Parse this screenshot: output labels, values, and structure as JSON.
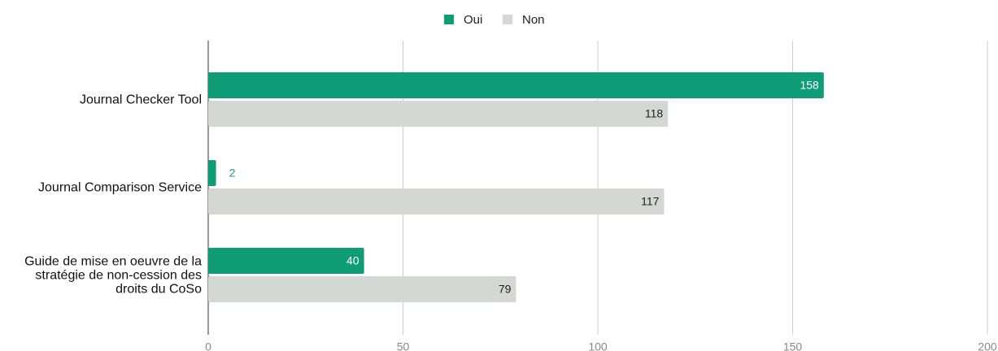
{
  "chart_data": {
    "type": "bar",
    "orientation": "horizontal",
    "categories": [
      "Journal Checker Tool",
      "Journal Comparison Service",
      "Guide de mise en oeuvre de la stratégie de non-cession des droits du CoSo"
    ],
    "series": [
      {
        "name": "Oui",
        "color": "#0f9d78",
        "values": [
          158,
          2,
          40
        ]
      },
      {
        "name": "Non",
        "color": "#d3d8d4",
        "values": [
          118,
          117,
          79
        ]
      }
    ],
    "xlim": [
      0,
      200
    ],
    "xticks": [
      0,
      50,
      100,
      150,
      200
    ],
    "grid": true,
    "legend": "top"
  }
}
